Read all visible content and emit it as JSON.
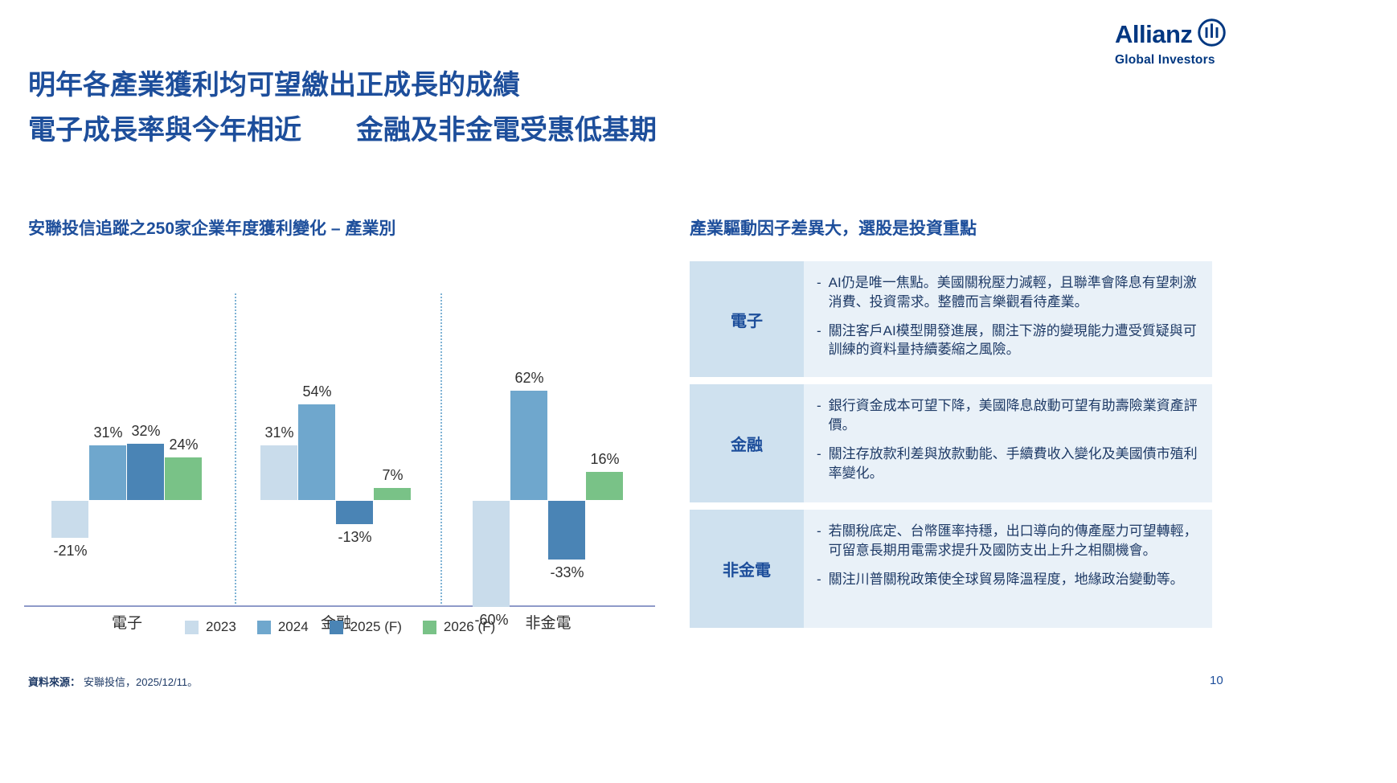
{
  "logo": {
    "brand": "Allianz",
    "subtitle": "Global Investors",
    "color": "#003781"
  },
  "title": {
    "line1": "明年各產業獲利均可望繳出正成長的成績",
    "line2": "電子成長率與今年相近　　金融及非金電受惠低基期"
  },
  "chart_data": {
    "type": "bar",
    "title": "安聯投信追蹤之250家企業年度獲利變化 – 產業別",
    "categories": [
      "電子",
      "金融",
      "非金電"
    ],
    "series": [
      {
        "name": "2023",
        "color": "#c9dceb",
        "values": [
          -21,
          31,
          -60
        ]
      },
      {
        "name": "2024",
        "color": "#6fa7cd",
        "values": [
          31,
          54,
          62
        ]
      },
      {
        "name": "2025 (F)",
        "color": "#4a84b5",
        "values": [
          32,
          -13,
          -33
        ]
      },
      {
        "name": "2026 (F)",
        "color": "#79c287",
        "values": [
          24,
          7,
          16
        ]
      }
    ],
    "value_suffix": "%",
    "xlabel": "",
    "ylabel": "",
    "ylim": [
      -60,
      70
    ],
    "grid": false,
    "legend_position": "bottom"
  },
  "insights": {
    "subtitle": "產業驅動因子差異大，選股是投資重點",
    "bullet_marker": "-",
    "rows": [
      {
        "label": "電子",
        "points": [
          "AI仍是唯一焦點。美國關稅壓力減輕，且聯準會降息有望刺激消費、投資需求。整體而言樂觀看待產業。",
          "關注客戶AI模型開發進展，關注下游的變現能力遭受質疑與可訓練的資料量持續萎縮之風險。"
        ]
      },
      {
        "label": "金融",
        "points": [
          "銀行資金成本可望下降，美國降息啟動可望有助壽險業資產評價。",
          "關注存放款利差與放款動能、手續費收入變化及美國債市殖利率變化。"
        ]
      },
      {
        "label": "非金電",
        "points": [
          "若關稅底定、台幣匯率持穩，出口導向的傳產壓力可望轉輕，可留意長期用電需求提升及國防支出上升之相關機會。",
          "關注川普關稅政策使全球貿易降溫程度，地緣政治變動等。"
        ]
      }
    ]
  },
  "footer": {
    "source_label": "資料來源：",
    "source_text": "安聯投信，2025/12/11。",
    "page_number": "10"
  },
  "colors": {
    "heading": "#1d4e9b",
    "body_text": "#1e3a66",
    "table_label_bg": "#cfe1ef",
    "table_content_bg": "#e9f1f8",
    "axis_line": "#8f9ac9",
    "separator": "#7fb3d5"
  }
}
